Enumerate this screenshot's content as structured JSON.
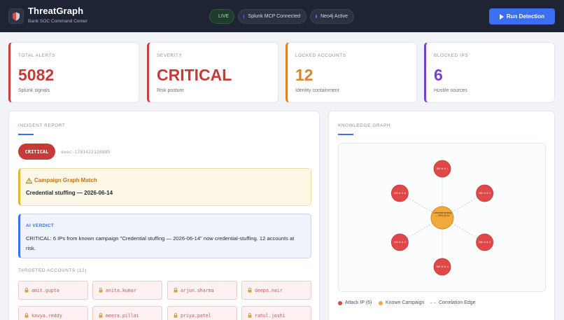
{
  "app": {
    "title": "ThreatGraph",
    "subtitle": "Bank SOC Command Center"
  },
  "status": {
    "live": "LIVE",
    "splunk": "Splunk MCP Connected",
    "neo4j": "Neo4j Active"
  },
  "actions": {
    "run_detection": "Run Detection"
  },
  "stats": [
    {
      "label": "TOTAL ALERTS",
      "value": "5082",
      "sub": "Splunk signals"
    },
    {
      "label": "SEVERITY",
      "value": "CRITICAL",
      "sub": "Risk posture"
    },
    {
      "label": "LOCKED ACCOUNTS",
      "value": "12",
      "sub": "Identity containment"
    },
    {
      "label": "BLOCKED IPS",
      "value": "6",
      "sub": "Hostile sources"
    }
  ],
  "incident": {
    "title": "INCIDENT REPORT",
    "severity": "CRITICAL",
    "exec_id": "exec-1781422120885",
    "campaign_title": "Campaign Graph Match",
    "campaign_name": "Credential stuffing — 2026-06-14",
    "verdict_title": "AI VERDICT",
    "verdict_text": "CRITICAL: 6 IPs from known campaign \"Credential stuffing — 2026-06-14\" now credential-stuffing. 12 accounts at risk.",
    "accounts_title": "TARGETED ACCOUNTS (12)",
    "accounts": [
      "amit.gupta",
      "anita.kumar",
      "arjun.sharma",
      "deepa.nair",
      "kavya.reddy",
      "meera.pillai",
      "priya.patel",
      "rahul.joshi"
    ]
  },
  "graph": {
    "title": "KNOWLEDGE GRAPH",
    "center_label": "Credential stuffing — 2026-06-14",
    "ip_labels": [
      "185.0.0.1",
      "185.0.0.2",
      "185.0.0.3",
      "185.0.0.4",
      "185.0.0.5",
      "185.0.0.6"
    ],
    "legend": {
      "attack_ip": "Attack IP (6)",
      "campaign": "Known Campaign",
      "edge": "Correlation Edge"
    }
  },
  "colors": {
    "accent": "#3b6ef0",
    "critical": "#c63a3a",
    "amber": "#d9842b",
    "purple": "#7b3fd0",
    "ip_node": "#e04848",
    "campaign_node": "#f0a93a"
  }
}
